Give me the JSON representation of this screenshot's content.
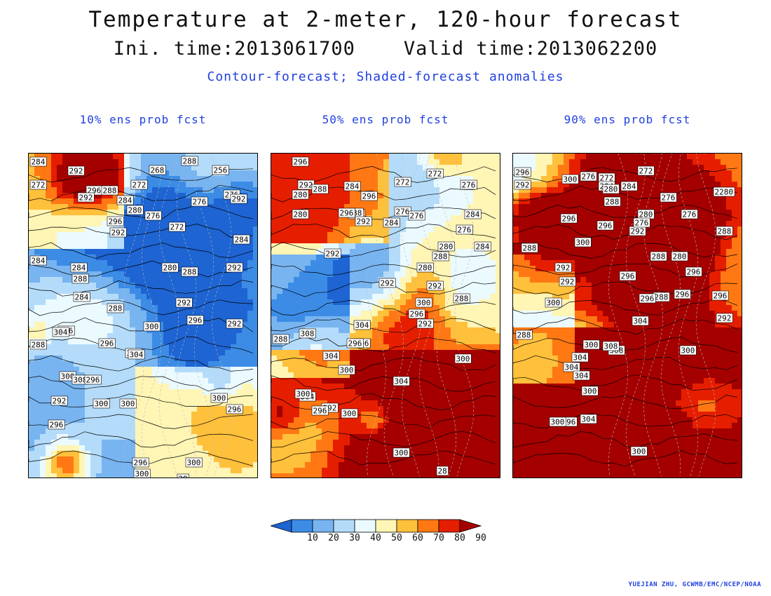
{
  "title": "Temperature at 2-meter, 120-hour forecast",
  "subtitle": "Ini. time:2013061700    Valid time:2013062200",
  "legend_description": "Contour-forecast; Shaded-forecast anomalies",
  "credit": "YUEJIAN ZHU, GCWMB/EMC/NCEP/NOAA",
  "colors": {
    "text_blue": "#1f3fe0",
    "scale": [
      "#1e64d2",
      "#3c8ce6",
      "#78b4f0",
      "#b4dcfa",
      "#ebfaff",
      "#fff5b4",
      "#ffc03c",
      "#ff7814",
      "#e61e00",
      "#a50000"
    ]
  },
  "colorbar": {
    "ticks": [
      "10",
      "20",
      "30",
      "40",
      "50",
      "60",
      "70",
      "80",
      "90"
    ]
  },
  "panels": [
    {
      "label": "10% ens prob fcst",
      "contour_labels": [
        "284",
        "292",
        "268",
        "288",
        "256",
        "272",
        "296",
        "292",
        "288",
        "272",
        "276",
        "284",
        "280",
        "296",
        "276",
        "292",
        "272",
        "276",
        "292",
        "284",
        "284",
        "284",
        "288",
        "280",
        "288",
        "284",
        "292",
        "288",
        "292",
        "296",
        "292",
        "296",
        "300",
        "304",
        "304",
        "296",
        "288",
        "304",
        "300",
        "308",
        "296",
        "292",
        "300",
        "300",
        "300",
        "296",
        "296",
        "296",
        "300",
        "300",
        "29"
      ]
    },
    {
      "label": "50% ens prob fcst",
      "contour_labels": [
        "296",
        "292",
        "280",
        "284",
        "272",
        "288",
        "296",
        "280",
        "272",
        "276",
        "284",
        "276",
        "280",
        "288",
        "296",
        "276",
        "292",
        "284",
        "276",
        "280",
        "292",
        "288",
        "284",
        "280",
        "288",
        "292",
        "292",
        "296",
        "300",
        "304",
        "296",
        "292",
        "288",
        "308",
        "304",
        "296",
        "300",
        "304",
        "300",
        "304",
        "292",
        "300",
        "296",
        "300",
        "300",
        "28"
      ]
    },
    {
      "label": "90% ens prob fcst",
      "contour_labels": [
        "296",
        "272",
        "292",
        "300",
        "276",
        "272",
        "284",
        "280",
        "284",
        "2280",
        "288",
        "276",
        "296",
        "296",
        "292",
        "280",
        "276",
        "276",
        "288",
        "300",
        "288",
        "280",
        "292",
        "288",
        "296",
        "296",
        "292",
        "288",
        "300",
        "296",
        "296",
        "304",
        "296",
        "292",
        "288",
        "300",
        "308",
        "300",
        "304",
        "304",
        "308",
        "304",
        "300",
        "296",
        "300",
        "304",
        "300"
      ]
    }
  ]
}
